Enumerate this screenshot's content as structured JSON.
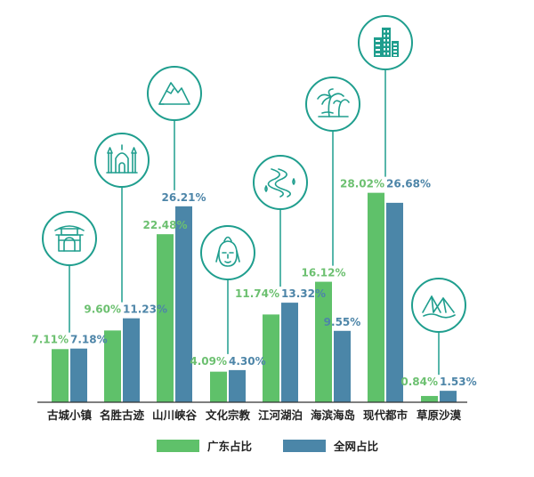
{
  "chart_data": {
    "type": "bar",
    "categories": [
      "古城小镇",
      "名胜古迹",
      "山川峡谷",
      "文化宗教",
      "江河湖泊",
      "海滨海岛",
      "现代都市",
      "草原沙漠"
    ],
    "series": [
      {
        "name": "广东占比",
        "values": [
          7.11,
          9.6,
          22.48,
          4.09,
          11.74,
          16.12,
          28.02,
          0.84
        ],
        "labels": [
          "7.11%",
          "9.60%",
          "22.48%",
          "4.09%",
          "11.74%",
          "16.12%",
          "28.02%",
          "0.84%"
        ]
      },
      {
        "name": "全网占比",
        "values": [
          7.18,
          11.23,
          26.21,
          4.3,
          13.32,
          9.55,
          26.68,
          1.53
        ],
        "labels": [
          "7.18%",
          "11.23%",
          "26.21%",
          "4.30%",
          "13.32%",
          "9.55%",
          "26.68%",
          "1.53%"
        ]
      }
    ],
    "icons": [
      "gate-tower-icon",
      "palace-icon",
      "mountain-icon",
      "buddha-icon",
      "river-icon",
      "palm-tree-icon",
      "skyscraper-icon",
      "desert-dunes-icon"
    ],
    "ylim": [
      0,
      30
    ],
    "grid": false,
    "legend": "bottom-center",
    "colors": {
      "guangdong": "#5fc16a",
      "national": "#4b86a8",
      "guangdong_label": "#6cc070",
      "national_label": "#4d85a8",
      "icon": "#1f9e8e",
      "axis": "#333333"
    }
  }
}
